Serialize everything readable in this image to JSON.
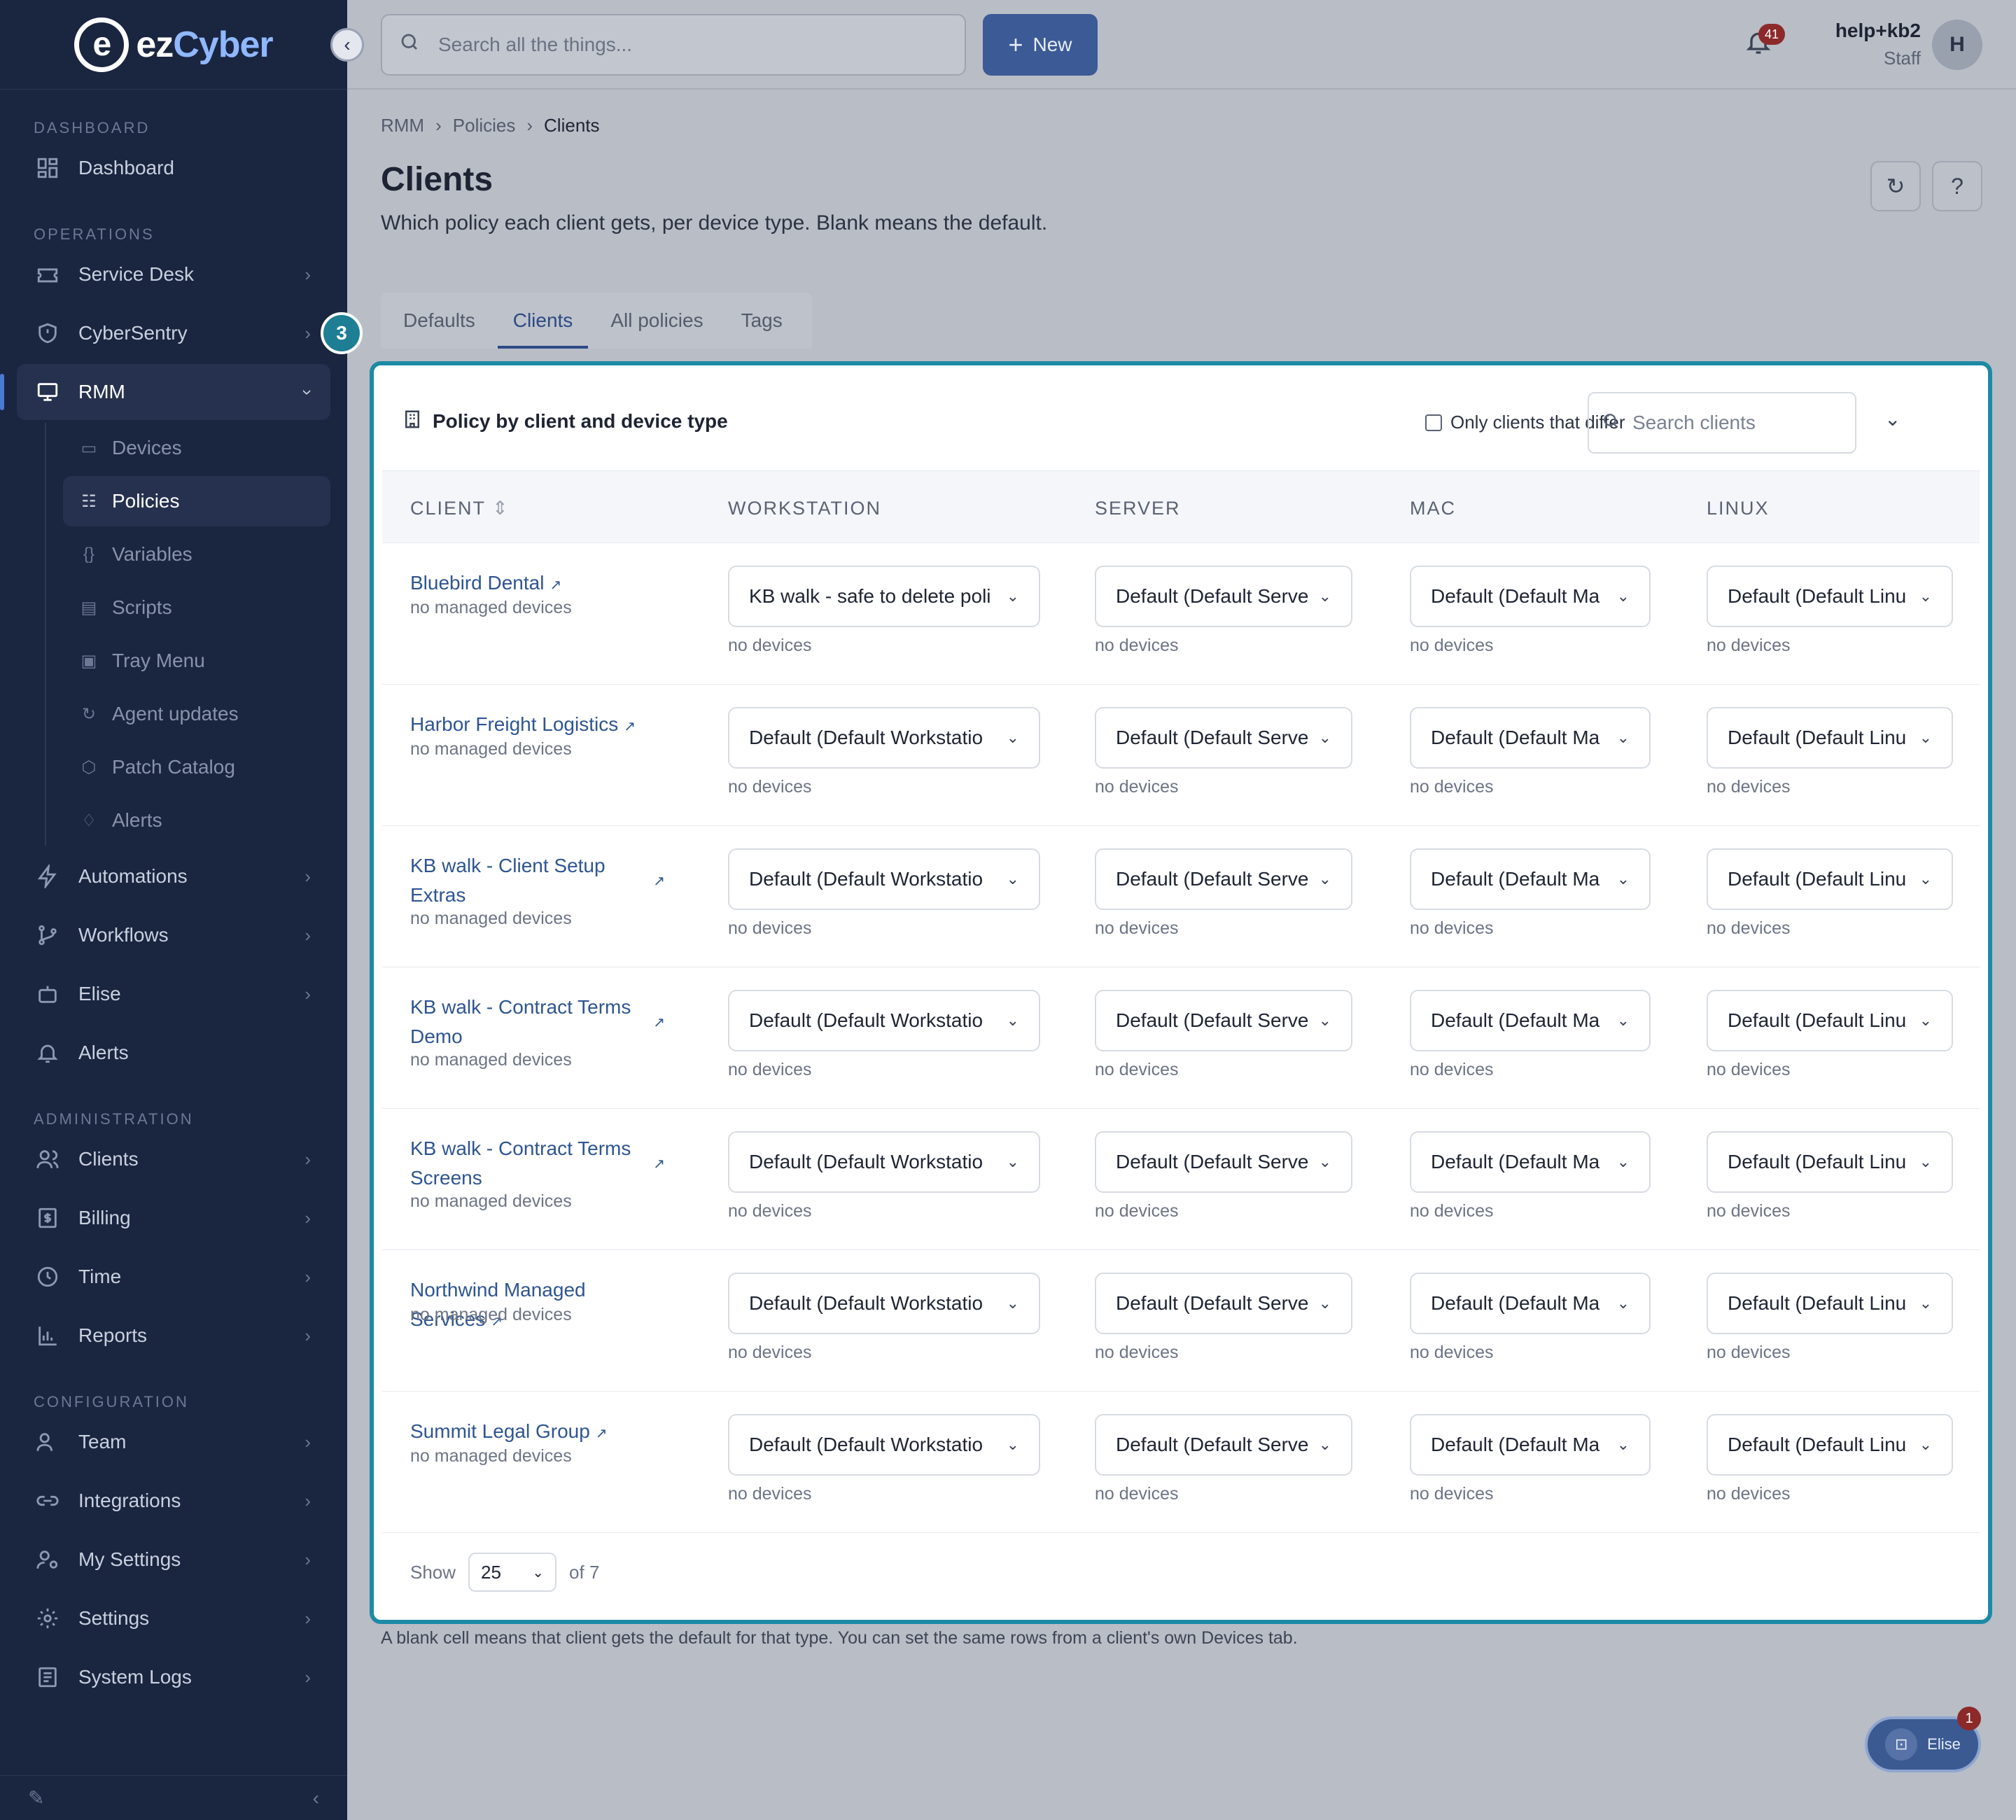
{
  "brand": {
    "name_prefix": "ez",
    "name_suffix": "Cyber",
    "logo_mark": "e"
  },
  "sidebar": {
    "sections": {
      "dashboard": "DASHBOARD",
      "operations": "OPERATIONS",
      "administration": "ADMINISTRATION",
      "configuration": "CONFIGURATION"
    },
    "items": {
      "dashboard": "Dashboard",
      "service_desk": "Service Desk",
      "cybersentry": "CyberSentry",
      "rmm": "RMM",
      "automations": "Automations",
      "workflows": "Workflows",
      "elise": "Elise",
      "alerts": "Alerts",
      "clients": "Clients",
      "billing": "Billing",
      "time": "Time",
      "reports": "Reports",
      "team": "Team",
      "integrations": "Integrations",
      "my_settings": "My Settings",
      "settings": "Settings",
      "system_logs": "System Logs"
    },
    "rmm_sub": {
      "devices": "Devices",
      "policies": "Policies",
      "variables": "Variables",
      "scripts": "Scripts",
      "tray_menu": "Tray Menu",
      "agent_updates": "Agent updates",
      "patch_catalog": "Patch Catalog",
      "alerts": "Alerts"
    }
  },
  "topbar": {
    "search_placeholder": "Search all the things...",
    "new_label": "New",
    "notifications_count": "41",
    "user_name": "help+kb2",
    "user_role": "Staff",
    "avatar_initial": "H"
  },
  "breadcrumb": {
    "root": "RMM",
    "mid": "Policies",
    "current": "Clients"
  },
  "page": {
    "title": "Clients",
    "subtitle": "Which policy each client gets, per device type. Blank means the default.",
    "tabs": {
      "defaults": "Defaults",
      "clients": "Clients",
      "all_policies": "All policies",
      "tags": "Tags"
    },
    "step_number": "3",
    "footnote": "A blank cell means that client gets the default for that type. You can set the same rows from a client's own Devices tab."
  },
  "card": {
    "title": "Policy by client and device type",
    "differ_label": "Only clients that differ",
    "search_placeholder": "Search clients",
    "columns": {
      "client": "CLIENT",
      "workstation": "WORKSTATION",
      "server": "SERVER",
      "mac": "MAC",
      "linux": "LINUX"
    },
    "no_devices": "no devices",
    "rows": [
      {
        "name": "Bluebird Dental",
        "sub": "no managed devices",
        "ws": "KB walk - safe to delete poli",
        "srv": "Default (Default Serve",
        "mac": "Default (Default Ma",
        "lin": "Default (Default Linu"
      },
      {
        "name": "Harbor Freight Logistics",
        "sub": "no managed devices",
        "ws": "Default (Default Workstatio",
        "srv": "Default (Default Serve",
        "mac": "Default (Default Ma",
        "lin": "Default (Default Linu"
      },
      {
        "name": "KB walk - Client Setup Extras",
        "sub": "no managed devices",
        "ws": "Default (Default Workstatio",
        "srv": "Default (Default Serve",
        "mac": "Default (Default Ma",
        "lin": "Default (Default Linu"
      },
      {
        "name": "KB walk - Contract Terms Demo",
        "sub": "no managed devices",
        "ws": "Default (Default Workstatio",
        "srv": "Default (Default Serve",
        "mac": "Default (Default Ma",
        "lin": "Default (Default Linu"
      },
      {
        "name": "KB walk - Contract Terms Screens",
        "sub": "no managed devices",
        "ws": "Default (Default Workstatio",
        "srv": "Default (Default Serve",
        "mac": "Default (Default Ma",
        "lin": "Default (Default Linu"
      },
      {
        "name": "Northwind Managed Services",
        "sub": "no managed devices",
        "ws": "Default (Default Workstatio",
        "srv": "Default (Default Serve",
        "mac": "Default (Default Ma",
        "lin": "Default (Default Linu"
      },
      {
        "name": "Summit Legal Group",
        "sub": "no managed devices",
        "ws": "Default (Default Workstatio",
        "srv": "Default (Default Serve",
        "mac": "Default (Default Ma",
        "lin": "Default (Default Linu"
      }
    ],
    "footer": {
      "show": "Show",
      "page_size": "25",
      "of_total": "of 7"
    }
  },
  "elise_chat": {
    "label": "Elise",
    "badge": "1"
  },
  "colors": {
    "sidebar_bg": "#1a2540",
    "accent": "#3c5a96",
    "highlight": "#1d8aa5",
    "link": "#2e5592",
    "badge": "#8c2a2a"
  }
}
